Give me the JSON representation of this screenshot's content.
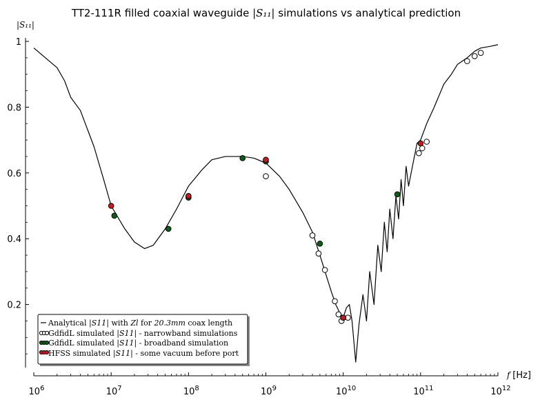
{
  "chart_data": {
    "type": "line",
    "title": "TT2-111R filled coaxial waveguide |S11| simulations vs analytical prediction",
    "xlabel": "f [Hz]",
    "ylabel": "|S11|",
    "xscale": "log",
    "xlim": [
      1000000,
      1000000000000
    ],
    "ylim": [
      0,
      1
    ],
    "x_ticks": [
      {
        "value": 1000000,
        "base": "10",
        "exp": "6"
      },
      {
        "value": 10000000,
        "base": "10",
        "exp": "7"
      },
      {
        "value": 100000000,
        "base": "10",
        "exp": "8"
      },
      {
        "value": 1000000000,
        "base": "10",
        "exp": "9"
      },
      {
        "value": 10000000000,
        "base": "10",
        "exp": "10"
      },
      {
        "value": 100000000000,
        "base": "10",
        "exp": "11"
      },
      {
        "value": 1000000000000,
        "base": "10",
        "exp": "12"
      }
    ],
    "y_ticks": [
      {
        "value": 0.2,
        "label": "0.2"
      },
      {
        "value": 0.4,
        "label": "0.4"
      },
      {
        "value": 0.6,
        "label": "0.6"
      },
      {
        "value": 0.8,
        "label": "0.8"
      },
      {
        "value": 1.0,
        "label": "1"
      }
    ],
    "grid": false,
    "legend_position": "bottom-left",
    "series": [
      {
        "name": "Analytical |S11| with Zl for 20.3mm coax length",
        "style": "line",
        "color": "#000000",
        "x": [
          1000000,
          2000000,
          2500000,
          3000000,
          4000000,
          6000000,
          8000000,
          10000000,
          15000000,
          20000000,
          27000000,
          35000000,
          50000000,
          70000000,
          100000000,
          150000000,
          200000000,
          300000000,
          500000000,
          700000000,
          1000000000,
          1500000000,
          2000000000,
          3000000000,
          4000000000,
          5000000000,
          6000000000,
          7000000000,
          8000000000,
          9000000000,
          10000000000,
          11000000000,
          12000000000,
          13000000000,
          14500000000,
          16000000000,
          18000000000,
          20000000000,
          22000000000,
          25000000000,
          28000000000,
          31000000000,
          34000000000,
          37000000000,
          40000000000,
          44000000000,
          48000000000,
          52000000000,
          56000000000,
          60000000000,
          65000000000,
          70000000000,
          80000000000,
          90000000000,
          100000000000,
          120000000000,
          150000000000,
          200000000000,
          250000000000,
          300000000000,
          400000000000,
          500000000000,
          600000000000,
          800000000000,
          1000000000000
        ],
        "y": [
          0.98,
          0.92,
          0.88,
          0.83,
          0.79,
          0.68,
          0.58,
          0.5,
          0.43,
          0.39,
          0.37,
          0.38,
          0.43,
          0.49,
          0.56,
          0.61,
          0.64,
          0.65,
          0.65,
          0.645,
          0.63,
          0.59,
          0.55,
          0.48,
          0.42,
          0.35,
          0.29,
          0.24,
          0.2,
          0.175,
          0.16,
          0.19,
          0.2,
          0.15,
          0.025,
          0.14,
          0.23,
          0.15,
          0.3,
          0.2,
          0.38,
          0.3,
          0.45,
          0.36,
          0.49,
          0.4,
          0.53,
          0.46,
          0.58,
          0.5,
          0.62,
          0.56,
          0.63,
          0.69,
          0.7,
          0.75,
          0.8,
          0.87,
          0.9,
          0.93,
          0.95,
          0.97,
          0.98,
          0.985,
          0.99
        ]
      },
      {
        "name": "GdfidL simulated |S11| - narrowband simulations",
        "style": "scatter",
        "marker_fill": "#ffffff",
        "x": [
          1000000000,
          4000000000,
          4800000000,
          5800000000,
          7800000000,
          8700000000,
          9500000000,
          11500000000,
          95000000000,
          105000000000,
          120000000000,
          400000000000,
          500000000000,
          600000000000
        ],
        "y": [
          0.59,
          0.41,
          0.355,
          0.305,
          0.21,
          0.17,
          0.15,
          0.16,
          0.66,
          0.675,
          0.695,
          0.94,
          0.955,
          0.965
        ]
      },
      {
        "name": "GdfidL simulated |S11| - broadband simulation",
        "style": "scatter",
        "marker_fill": "#0a5f14",
        "x": [
          11000000,
          55000000,
          100000000,
          500000000,
          1000000000,
          5000000000,
          10000000000,
          50000000000
        ],
        "y": [
          0.47,
          0.43,
          0.525,
          0.645,
          0.635,
          0.385,
          0.16,
          0.535
        ]
      },
      {
        "name": "HFSS simulated |S11| - some vacuum before port",
        "style": "scatter",
        "marker_fill": "#c8191e",
        "x": [
          10000000,
          100000000,
          1000000000,
          10000000000,
          100000000000
        ],
        "y": [
          0.5,
          0.53,
          0.64,
          0.16,
          0.69
        ]
      }
    ]
  },
  "legend": {
    "entries": [
      {
        "pre": "Analytical ",
        "sym": "|S11|",
        "mid": " with ",
        "sym2": "Zl",
        "mid2": " for ",
        "sym3": "20.3mm",
        "post": " coax length"
      },
      {
        "pre": "GdfidL simulated ",
        "sym": "|S11|",
        "post": " - narrowband simulations"
      },
      {
        "pre": "GdfidL simulated ",
        "sym": "|S11|",
        "post": " - broadband simulation"
      },
      {
        "pre": "HFSS simulated ",
        "sym": "|S11|",
        "post": " - some vacuum before port"
      }
    ]
  }
}
